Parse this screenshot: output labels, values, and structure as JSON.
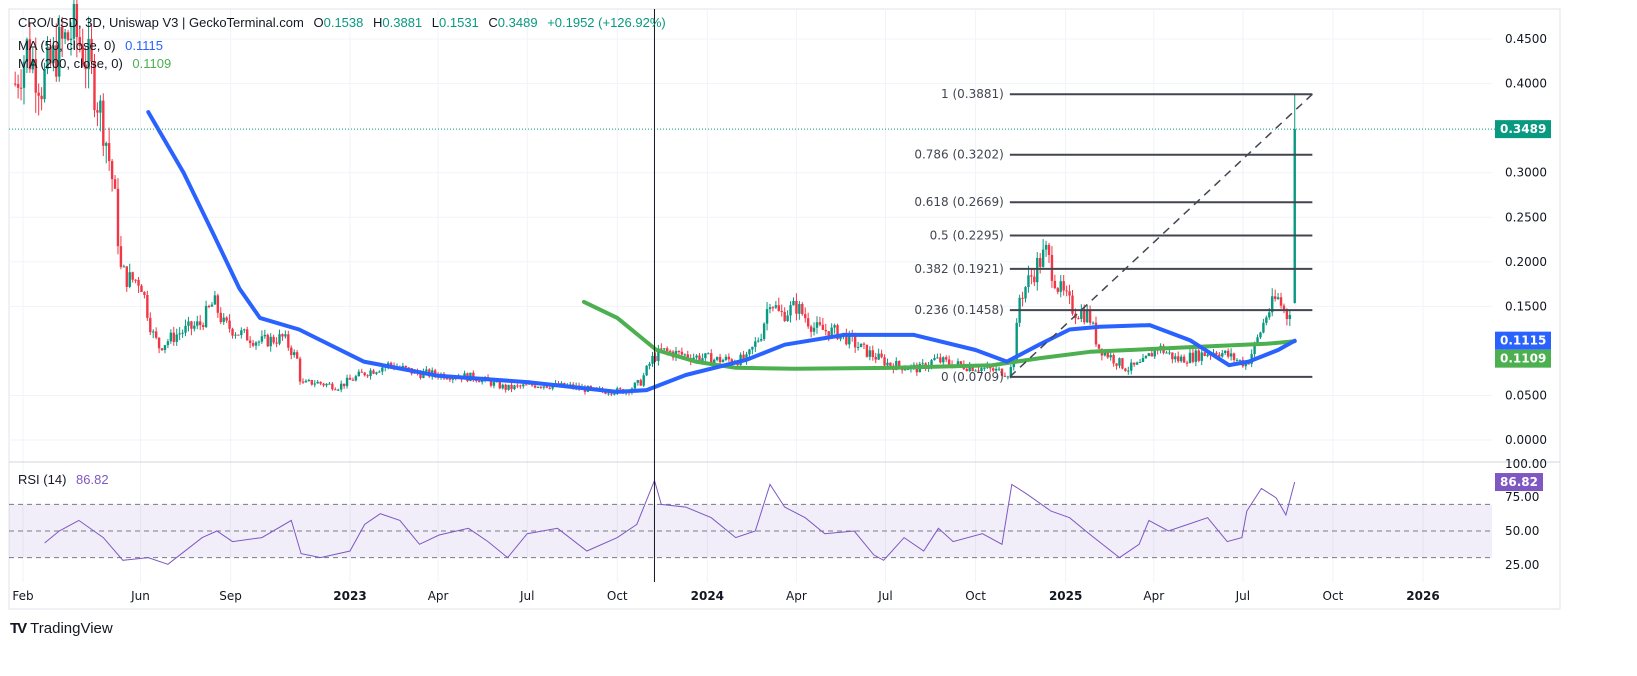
{
  "legend": {
    "symbol": "CRO/USD, 3D, Uniswap V3 | GeckoTerminal.com",
    "o_label": "O",
    "o": "0.1538",
    "h_label": "H",
    "h": "0.3881",
    "l_label": "L",
    "l": "0.1531",
    "c_label": "C",
    "c": "0.3489",
    "change": "+0.1952 (+126.92%)",
    "ma50_label": "MA (50, close, 0)",
    "ma50_value": "0.1115",
    "ma200_label": "MA (200, close, 0)",
    "ma200_value": "0.1109",
    "rsi_label": "RSI (14)",
    "rsi_value": "86.82"
  },
  "brand": {
    "name": "TradingView",
    "logo_icon": "tradingview-logo"
  },
  "colors": {
    "up": "#089981",
    "down": "#f23645",
    "ma50": "#2962ff",
    "ma200": "#4caf50",
    "rsi": "#7e57c2",
    "fib": "#434651"
  },
  "chart_data": {
    "type": "candlestick",
    "timeframe": "3D",
    "price_axis": {
      "ticks": [
        "0.4500",
        "0.4000",
        "0.3000",
        "0.2500",
        "0.2000",
        "0.1500",
        "0.0500",
        "0.0000"
      ],
      "tick_values": [
        0.45,
        0.4,
        0.3,
        0.25,
        0.2,
        0.15,
        0.05,
        0.0
      ],
      "range": [
        0,
        0.45
      ]
    },
    "rsi_axis": {
      "ticks": [
        "100.00",
        "75.00",
        "50.00",
        "25.00"
      ],
      "tick_values": [
        100,
        75,
        50,
        25
      ],
      "bands": [
        30,
        50,
        70
      ]
    },
    "time_axis": [
      {
        "label": "Feb",
        "date": "2022-02-01",
        "bold": false
      },
      {
        "label": "Jun",
        "date": "2022-06-01",
        "bold": false
      },
      {
        "label": "Sep",
        "date": "2022-09-01",
        "bold": false
      },
      {
        "label": "2023",
        "date": "2023-01-01",
        "bold": true
      },
      {
        "label": "Apr",
        "date": "2023-04-01",
        "bold": false
      },
      {
        "label": "Jul",
        "date": "2023-07-01",
        "bold": false
      },
      {
        "label": "Oct",
        "date": "2023-10-01",
        "bold": false
      },
      {
        "label": "2024",
        "date": "2024-01-01",
        "bold": true
      },
      {
        "label": "Apr",
        "date": "2024-04-01",
        "bold": false
      },
      {
        "label": "Jul",
        "date": "2024-07-01",
        "bold": false
      },
      {
        "label": "Oct",
        "date": "2024-10-01",
        "bold": false
      },
      {
        "label": "2025",
        "date": "2025-01-01",
        "bold": true
      },
      {
        "label": "Apr",
        "date": "2025-04-01",
        "bold": false
      },
      {
        "label": "Jul",
        "date": "2025-07-01",
        "bold": false
      },
      {
        "label": "Oct",
        "date": "2025-10-01",
        "bold": false
      },
      {
        "label": "2026",
        "date": "2026-01-01",
        "bold": true
      }
    ],
    "close_path": [
      [
        "2022-01-24",
        0.4
      ],
      [
        "2022-02-05",
        0.44
      ],
      [
        "2022-02-20",
        0.4
      ],
      [
        "2022-03-10",
        0.44
      ],
      [
        "2022-03-25",
        0.46
      ],
      [
        "2022-04-10",
        0.42
      ],
      [
        "2022-04-25",
        0.35
      ],
      [
        "2022-05-05",
        0.28
      ],
      [
        "2022-05-12",
        0.19
      ],
      [
        "2022-05-20",
        0.18
      ],
      [
        "2022-06-01",
        0.18
      ],
      [
        "2022-06-13",
        0.12
      ],
      [
        "2022-06-20",
        0.105
      ],
      [
        "2022-07-10",
        0.12
      ],
      [
        "2022-08-01",
        0.13
      ],
      [
        "2022-08-15",
        0.155
      ],
      [
        "2022-08-25",
        0.13
      ],
      [
        "2022-09-10",
        0.12
      ],
      [
        "2022-10-01",
        0.11
      ],
      [
        "2022-10-25",
        0.115
      ],
      [
        "2022-11-08",
        0.09
      ],
      [
        "2022-11-12",
        0.062
      ],
      [
        "2022-11-25",
        0.065
      ],
      [
        "2022-12-20",
        0.06
      ],
      [
        "2023-01-15",
        0.075
      ],
      [
        "2023-02-10",
        0.085
      ],
      [
        "2023-03-10",
        0.075
      ],
      [
        "2023-04-10",
        0.073
      ],
      [
        "2023-05-10",
        0.07
      ],
      [
        "2023-06-10",
        0.058
      ],
      [
        "2023-07-10",
        0.062
      ],
      [
        "2023-08-15",
        0.06
      ],
      [
        "2023-09-10",
        0.055
      ],
      [
        "2023-10-10",
        0.055
      ],
      [
        "2023-10-25",
        0.065
      ],
      [
        "2023-11-05",
        0.09
      ],
      [
        "2023-11-15",
        0.1
      ],
      [
        "2023-12-10",
        0.095
      ],
      [
        "2024-01-10",
        0.09
      ],
      [
        "2024-02-10",
        0.09
      ],
      [
        "2024-02-25",
        0.12
      ],
      [
        "2024-03-05",
        0.16
      ],
      [
        "2024-03-15",
        0.14
      ],
      [
        "2024-04-01",
        0.15
      ],
      [
        "2024-04-20",
        0.125
      ],
      [
        "2024-05-15",
        0.12
      ],
      [
        "2024-06-10",
        0.1
      ],
      [
        "2024-07-05",
        0.085
      ],
      [
        "2024-08-05",
        0.08
      ],
      [
        "2024-08-20",
        0.09
      ],
      [
        "2024-09-10",
        0.085
      ],
      [
        "2024-10-10",
        0.08
      ],
      [
        "2024-11-05",
        0.075
      ],
      [
        "2024-11-10",
        0.1
      ],
      [
        "2024-11-15",
        0.16
      ],
      [
        "2024-11-25",
        0.18
      ],
      [
        "2024-12-05",
        0.2
      ],
      [
        "2024-12-12",
        0.21
      ],
      [
        "2024-12-25",
        0.17
      ],
      [
        "2025-01-10",
        0.145
      ],
      [
        "2025-01-25",
        0.14
      ],
      [
        "2025-02-03",
        0.105
      ],
      [
        "2025-02-20",
        0.09
      ],
      [
        "2025-03-05",
        0.08
      ],
      [
        "2025-03-20",
        0.085
      ],
      [
        "2025-04-05",
        0.105
      ],
      [
        "2025-04-25",
        0.09
      ],
      [
        "2025-05-15",
        0.095
      ],
      [
        "2025-06-05",
        0.1
      ],
      [
        "2025-06-25",
        0.09
      ],
      [
        "2025-07-05",
        0.085
      ],
      [
        "2025-07-15",
        0.11
      ],
      [
        "2025-07-25",
        0.14
      ],
      [
        "2025-08-05",
        0.16
      ],
      [
        "2025-08-15",
        0.14
      ],
      [
        "2025-08-20",
        0.1538
      ]
    ],
    "last_candle": {
      "date": "2025-08-23",
      "open": 0.1538,
      "high": 0.3881,
      "low": 0.1531,
      "close": 0.3489
    },
    "ma50": [
      [
        "2022-06-09",
        0.368
      ],
      [
        "2022-07-15",
        0.3
      ],
      [
        "2022-08-15",
        0.23
      ],
      [
        "2022-09-10",
        0.17
      ],
      [
        "2022-10-01",
        0.137
      ],
      [
        "2022-11-10",
        0.124
      ],
      [
        "2023-01-15",
        0.088
      ],
      [
        "2023-04-01",
        0.072
      ],
      [
        "2023-07-01",
        0.065
      ],
      [
        "2023-10-01",
        0.054
      ],
      [
        "2023-10-31",
        0.056
      ],
      [
        "2023-12-10",
        0.073
      ],
      [
        "2024-02-10",
        0.09
      ],
      [
        "2024-03-20",
        0.107
      ],
      [
        "2024-05-20",
        0.118
      ],
      [
        "2024-07-30",
        0.118
      ],
      [
        "2024-10-01",
        0.101
      ],
      [
        "2024-11-02",
        0.088
      ],
      [
        "2024-12-05",
        0.107
      ],
      [
        "2025-01-05",
        0.124
      ],
      [
        "2025-02-05",
        0.127
      ],
      [
        "2025-03-28",
        0.129
      ],
      [
        "2025-05-08",
        0.112
      ],
      [
        "2025-06-17",
        0.084
      ],
      [
        "2025-07-07",
        0.088
      ],
      [
        "2025-08-06",
        0.101
      ],
      [
        "2025-08-23",
        0.1115
      ]
    ],
    "ma200": [
      [
        "2023-08-28",
        0.155
      ],
      [
        "2023-10-01",
        0.137
      ],
      [
        "2023-11-10",
        0.101
      ],
      [
        "2023-12-20",
        0.088
      ],
      [
        "2024-01-30",
        0.081
      ],
      [
        "2024-03-30",
        0.08
      ],
      [
        "2024-07-10",
        0.081
      ],
      [
        "2024-10-18",
        0.084
      ],
      [
        "2024-12-07",
        0.092
      ],
      [
        "2025-01-26",
        0.099
      ],
      [
        "2025-05-06",
        0.104
      ],
      [
        "2025-07-25",
        0.108
      ],
      [
        "2025-08-23",
        0.1109
      ]
    ],
    "rsi": [
      [
        "2022-02-23",
        41
      ],
      [
        "2022-03-10",
        50
      ],
      [
        "2022-03-30",
        58
      ],
      [
        "2022-04-24",
        45
      ],
      [
        "2022-05-14",
        28
      ],
      [
        "2022-06-09",
        30
      ],
      [
        "2022-06-29",
        25
      ],
      [
        "2022-08-03",
        45
      ],
      [
        "2022-08-18",
        50
      ],
      [
        "2022-09-03",
        42
      ],
      [
        "2022-10-03",
        45
      ],
      [
        "2022-11-02",
        58
      ],
      [
        "2022-11-12",
        33
      ],
      [
        "2022-12-02",
        30
      ],
      [
        "2023-01-01",
        35
      ],
      [
        "2023-01-16",
        55
      ],
      [
        "2023-02-01",
        63
      ],
      [
        "2023-02-21",
        58
      ],
      [
        "2023-03-13",
        40
      ],
      [
        "2023-04-02",
        47
      ],
      [
        "2023-05-02",
        52
      ],
      [
        "2023-05-22",
        42
      ],
      [
        "2023-06-11",
        30
      ],
      [
        "2023-07-01",
        48
      ],
      [
        "2023-08-01",
        52
      ],
      [
        "2023-08-31",
        35
      ],
      [
        "2023-10-01",
        45
      ],
      [
        "2023-10-21",
        55
      ],
      [
        "2023-11-08",
        88
      ],
      [
        "2023-11-15",
        70
      ],
      [
        "2023-12-10",
        68
      ],
      [
        "2024-01-05",
        60
      ],
      [
        "2024-01-30",
        45
      ],
      [
        "2024-02-19",
        50
      ],
      [
        "2024-03-05",
        85
      ],
      [
        "2024-03-20",
        68
      ],
      [
        "2024-04-10",
        60
      ],
      [
        "2024-04-30",
        48
      ],
      [
        "2024-05-30",
        50
      ],
      [
        "2024-06-19",
        32
      ],
      [
        "2024-06-29",
        28
      ],
      [
        "2024-07-20",
        45
      ],
      [
        "2024-08-09",
        35
      ],
      [
        "2024-08-24",
        52
      ],
      [
        "2024-09-08",
        42
      ],
      [
        "2024-10-08",
        48
      ],
      [
        "2024-10-28",
        40
      ],
      [
        "2024-11-07",
        85
      ],
      [
        "2024-11-22",
        78
      ],
      [
        "2024-12-17",
        65
      ],
      [
        "2025-01-05",
        60
      ],
      [
        "2025-01-25",
        48
      ],
      [
        "2025-02-25",
        30
      ],
      [
        "2025-03-17",
        40
      ],
      [
        "2025-03-27",
        58
      ],
      [
        "2025-04-16",
        50
      ],
      [
        "2025-05-06",
        55
      ],
      [
        "2025-05-26",
        60
      ],
      [
        "2025-06-15",
        42
      ],
      [
        "2025-06-30",
        45
      ],
      [
        "2025-07-05",
        65
      ],
      [
        "2025-07-20",
        82
      ],
      [
        "2025-08-04",
        75
      ],
      [
        "2025-08-14",
        62
      ],
      [
        "2025-08-23",
        86.82
      ]
    ],
    "fibonacci": {
      "start": {
        "date": "2024-11-05",
        "price": 0.0709
      },
      "end": {
        "date": "2025-09-10",
        "price": 0.3881
      },
      "levels": [
        {
          "label": "1 (0.3881)",
          "price": 0.3881
        },
        {
          "label": "0.786 (0.3202)",
          "price": 0.3202
        },
        {
          "label": "0.618 (0.2669)",
          "price": 0.2669
        },
        {
          "label": "0.5 (0.2295)",
          "price": 0.2295
        },
        {
          "label": "0.382 (0.1921)",
          "price": 0.1921
        },
        {
          "label": "0.236 (0.1458)",
          "price": 0.1458
        },
        {
          "label": "0 (0.0709)",
          "price": 0.0709
        }
      ]
    },
    "price_tags": [
      {
        "text": "0.3489",
        "value": 0.3489,
        "color": "#089981"
      },
      {
        "text": "0.1115",
        "value": 0.1115,
        "color": "#2962ff"
      },
      {
        "text": "0.1109",
        "value": 0.1109,
        "color": "#4caf50"
      }
    ],
    "rsi_tag": {
      "text": "86.82",
      "value": 86.82,
      "color": "#7e57c2"
    },
    "crosshair_date": "2023-11-08",
    "grid": true
  }
}
